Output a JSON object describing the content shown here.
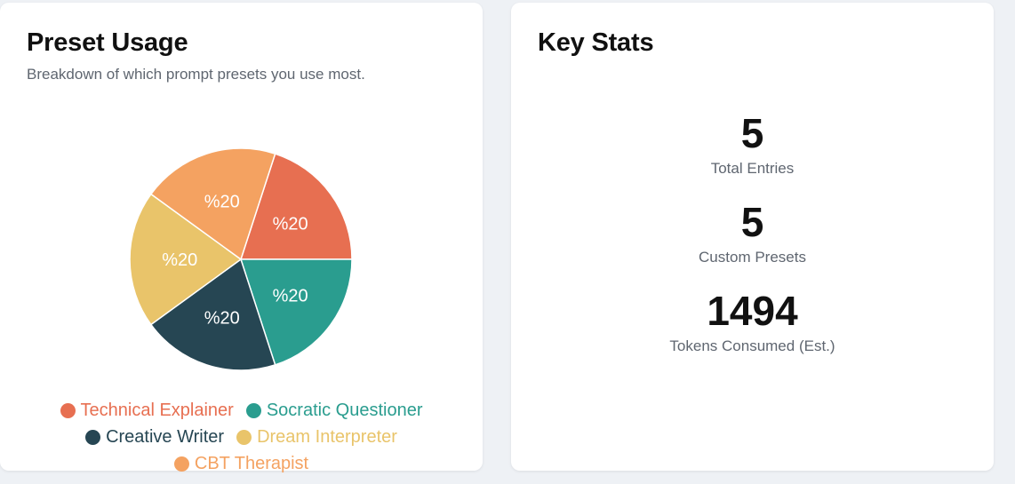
{
  "usage_card": {
    "title": "Preset Usage",
    "subtitle": "Breakdown of which prompt presets you use most."
  },
  "stats_card": {
    "title": "Key Stats",
    "stats": [
      {
        "value": "5",
        "label": "Total Entries"
      },
      {
        "value": "5",
        "label": "Custom Presets"
      },
      {
        "value": "1494",
        "label": "Tokens Consumed (Est.)"
      }
    ]
  },
  "chart_data": {
    "type": "pie",
    "categories": [
      "Technical Explainer",
      "Socratic Questioner",
      "Creative Writer",
      "Dream Interpreter",
      "CBT Therapist"
    ],
    "values": [
      20,
      20,
      20,
      20,
      20
    ],
    "slice_labels": [
      "%20",
      "%20",
      "%20",
      "%20",
      "%20"
    ],
    "colors": [
      "#e76f51",
      "#2a9d8f",
      "#264653",
      "#e9c46a",
      "#f4a261"
    ],
    "legend_position": "bottom"
  }
}
